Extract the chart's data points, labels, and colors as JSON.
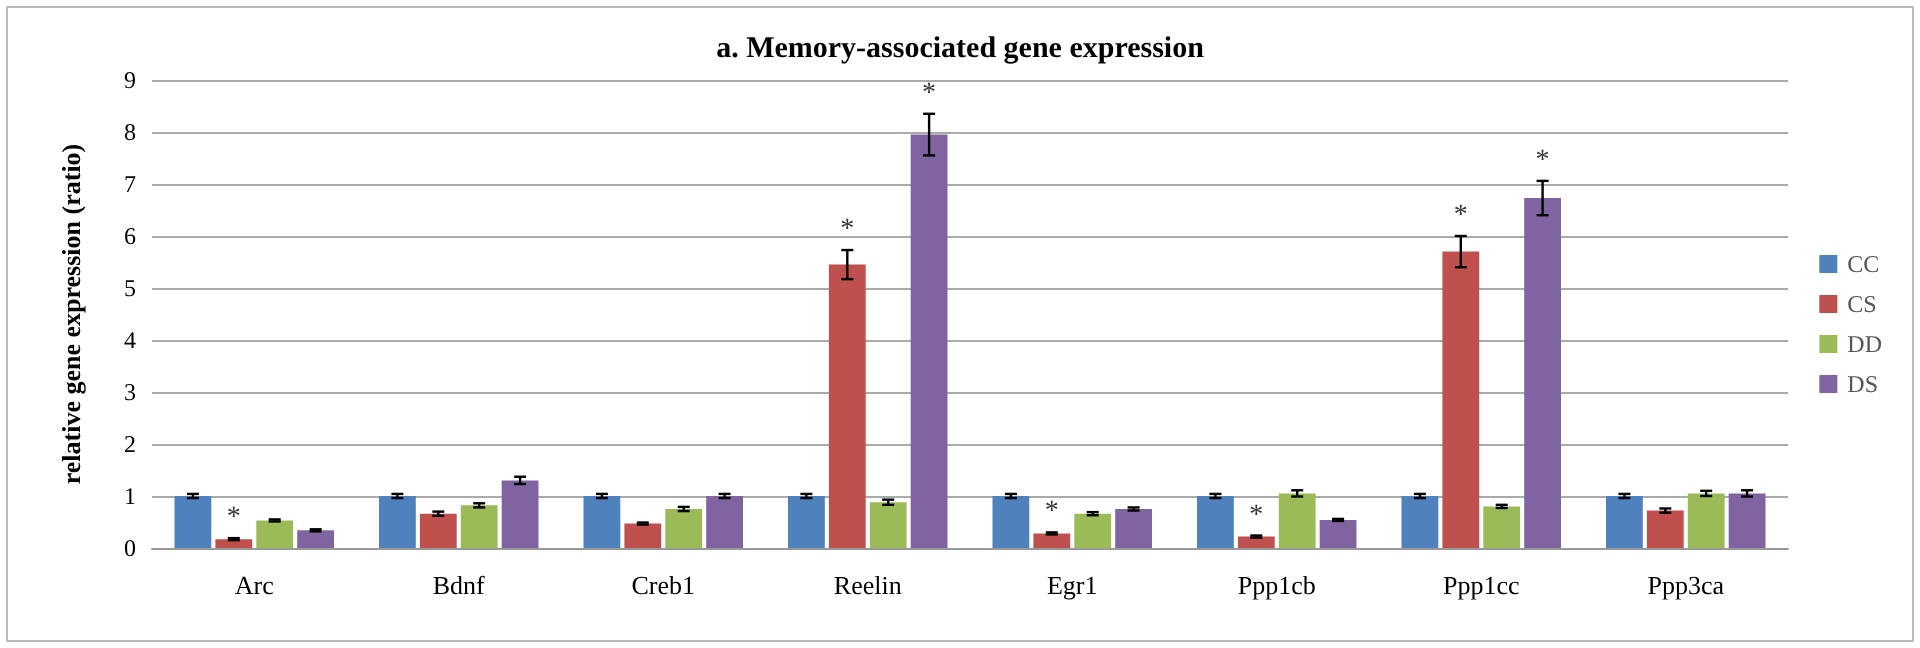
{
  "chart_data": {
    "type": "bar",
    "title": "a. Memory-associated gene expression",
    "ylabel": "relative gene expression (ratio)",
    "categories": [
      "Arc",
      "Bdnf",
      "Creb1",
      "Reelin",
      "Egr1",
      "Ppp1cb",
      "Ppp1cc",
      "Ppp3ca"
    ],
    "series": [
      {
        "name": "CC",
        "color": "#4f81bd",
        "values": [
          1,
          1,
          1,
          1,
          1,
          1,
          1,
          1
        ],
        "errors": [
          0.04,
          0.04,
          0.04,
          0.04,
          0.04,
          0.04,
          0.04,
          0.04
        ]
      },
      {
        "name": "CS",
        "color": "#c0504d",
        "values": [
          0.17,
          0.66,
          0.47,
          5.45,
          0.28,
          0.22,
          5.7,
          0.72
        ],
        "errors": [
          0.02,
          0.04,
          0.02,
          0.28,
          0.02,
          0.02,
          0.3,
          0.04
        ],
        "value_labels": [
          "*",
          null,
          null,
          "*",
          "*",
          "*",
          "*",
          null
        ]
      },
      {
        "name": "DD",
        "color": "#9bbb59",
        "values": [
          0.53,
          0.82,
          0.75,
          0.88,
          0.66,
          1.05,
          0.8,
          1.05
        ],
        "errors": [
          0.02,
          0.04,
          0.04,
          0.05,
          0.03,
          0.06,
          0.03,
          0.05
        ]
      },
      {
        "name": "DS",
        "color": "#8064a2",
        "values": [
          0.34,
          1.3,
          1.0,
          7.95,
          0.75,
          0.54,
          6.73,
          1.05
        ],
        "errors": [
          0.02,
          0.07,
          0.04,
          0.4,
          0.03,
          0.02,
          0.33,
          0.06
        ],
        "value_labels": [
          null,
          null,
          null,
          "*",
          null,
          null,
          "*",
          null
        ]
      }
    ],
    "ylim": [
      0,
      9
    ],
    "yticks": [
      0,
      1,
      2,
      3,
      4,
      5,
      6,
      7,
      8,
      9
    ],
    "grid": "y",
    "legend": "right"
  }
}
